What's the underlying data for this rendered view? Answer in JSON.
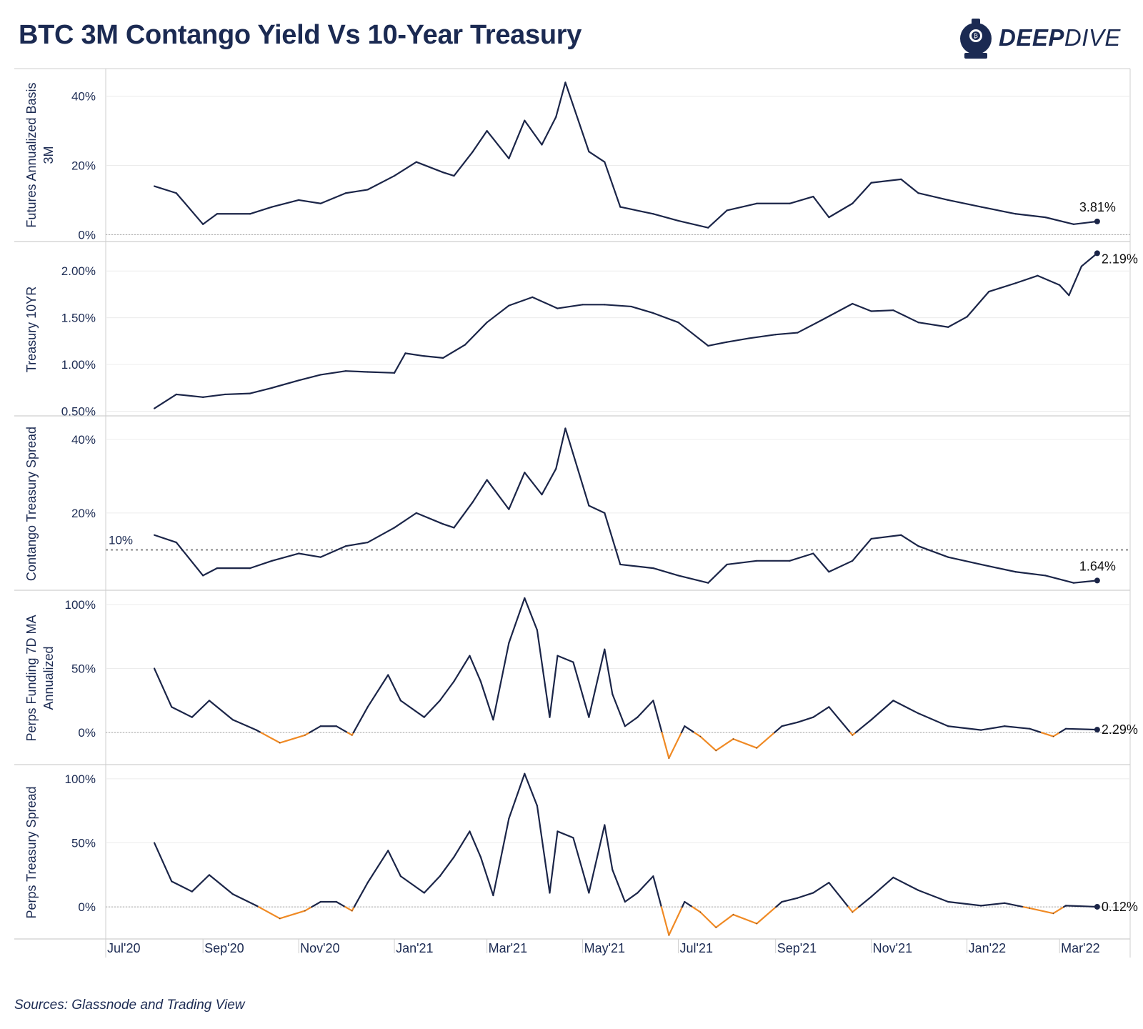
{
  "title": "BTC 3M Contango Yield Vs 10-Year Treasury",
  "brand": {
    "name_bold": "DEEP",
    "name_light": "DIVE",
    "icon": "diving-helmet-icon"
  },
  "source": "Sources: Glassnode and Trading View",
  "colors": {
    "line": "#1b2548",
    "negative": "#f08a24",
    "grid": "#ececec",
    "zero": "#a8a8a8",
    "axis_text": "#1b2a52"
  },
  "x_axis": {
    "ticks": [
      "Jul'20",
      "Sep'20",
      "Nov'20",
      "Jan'21",
      "Mar'21",
      "May'21",
      "Jul'21",
      "Sep'21",
      "Nov'21",
      "Jan'22",
      "Mar'22"
    ],
    "range": [
      "2020-07-01",
      "2022-04-15"
    ]
  },
  "chart_data": [
    {
      "type": "line",
      "ylabel": "Futures Annualized Basis 3M",
      "ylim": [
        -2,
        48
      ],
      "yticks": [
        0,
        20,
        40
      ],
      "ytick_labels": [
        "0%",
        "20%",
        "40%"
      ],
      "zero_line": true,
      "end_label": "3.81%",
      "x": [
        "2020-08-01",
        "2020-08-15",
        "2020-09-01",
        "2020-09-10",
        "2020-10-01",
        "2020-10-15",
        "2020-11-01",
        "2020-11-15",
        "2020-12-01",
        "2020-12-15",
        "2021-01-01",
        "2021-01-15",
        "2021-02-01",
        "2021-02-08",
        "2021-02-20",
        "2021-03-01",
        "2021-03-15",
        "2021-03-25",
        "2021-04-05",
        "2021-04-14",
        "2021-04-20",
        "2021-05-05",
        "2021-05-15",
        "2021-05-25",
        "2021-06-15",
        "2021-07-01",
        "2021-07-20",
        "2021-08-01",
        "2021-08-20",
        "2021-09-10",
        "2021-09-25",
        "2021-10-05",
        "2021-10-20",
        "2021-11-01",
        "2021-11-20",
        "2021-12-01",
        "2021-12-20",
        "2022-01-10",
        "2022-02-01",
        "2022-02-20",
        "2022-03-10",
        "2022-03-25"
      ],
      "y": [
        14,
        12,
        3,
        6,
        6,
        8,
        10,
        9,
        12,
        13,
        17,
        21,
        18,
        17,
        24,
        30,
        22,
        33,
        26,
        34,
        44,
        24,
        21,
        8,
        6,
        4,
        2,
        7,
        9,
        9,
        11,
        5,
        9,
        15,
        16,
        12,
        10,
        8,
        6,
        5,
        3,
        3.81
      ]
    },
    {
      "type": "line",
      "ylabel": "Treasury 10YR",
      "ylim": [
        0.45,
        2.3
      ],
      "yticks": [
        0.5,
        1.0,
        1.5,
        2.0
      ],
      "ytick_labels": [
        "0.50%",
        "1.00%",
        "1.50%",
        "2.00%"
      ],
      "zero_line": false,
      "end_label": "2.19%",
      "x": [
        "2020-08-01",
        "2020-08-15",
        "2020-09-01",
        "2020-09-15",
        "2020-10-01",
        "2020-10-15",
        "2020-11-01",
        "2020-11-15",
        "2020-12-01",
        "2020-12-15",
        "2021-01-01",
        "2021-01-08",
        "2021-01-20",
        "2021-02-01",
        "2021-02-15",
        "2021-03-01",
        "2021-03-15",
        "2021-03-30",
        "2021-04-15",
        "2021-05-01",
        "2021-05-15",
        "2021-06-01",
        "2021-06-15",
        "2021-07-01",
        "2021-07-20",
        "2021-08-01",
        "2021-08-15",
        "2021-09-01",
        "2021-09-15",
        "2021-10-01",
        "2021-10-20",
        "2021-11-01",
        "2021-11-15",
        "2021-12-01",
        "2021-12-20",
        "2022-01-01",
        "2022-01-15",
        "2022-02-01",
        "2022-02-15",
        "2022-03-01",
        "2022-03-07",
        "2022-03-15",
        "2022-03-25"
      ],
      "y": [
        0.53,
        0.68,
        0.65,
        0.68,
        0.69,
        0.75,
        0.83,
        0.89,
        0.93,
        0.92,
        0.91,
        1.12,
        1.09,
        1.07,
        1.21,
        1.45,
        1.63,
        1.72,
        1.6,
        1.64,
        1.64,
        1.62,
        1.55,
        1.45,
        1.2,
        1.24,
        1.28,
        1.32,
        1.34,
        1.48,
        1.65,
        1.57,
        1.58,
        1.45,
        1.4,
        1.51,
        1.78,
        1.87,
        1.95,
        1.85,
        1.74,
        2.05,
        2.19
      ]
    },
    {
      "type": "line",
      "ylabel": "Contango Treasury Spread",
      "ylim": [
        -1,
        46
      ],
      "yticks": [
        20,
        40
      ],
      "ytick_labels": [
        "20%",
        "40%"
      ],
      "zero_line": false,
      "reference_line": {
        "value": 10,
        "label": "10%"
      },
      "end_label": "1.64%",
      "x": [
        "2020-08-01",
        "2020-08-15",
        "2020-09-01",
        "2020-09-10",
        "2020-10-01",
        "2020-10-15",
        "2020-11-01",
        "2020-11-15",
        "2020-12-01",
        "2020-12-15",
        "2021-01-01",
        "2021-01-15",
        "2021-02-01",
        "2021-02-08",
        "2021-02-20",
        "2021-03-01",
        "2021-03-15",
        "2021-03-25",
        "2021-04-05",
        "2021-04-14",
        "2021-04-20",
        "2021-05-05",
        "2021-05-15",
        "2021-05-25",
        "2021-06-15",
        "2021-07-01",
        "2021-07-20",
        "2021-08-01",
        "2021-08-20",
        "2021-09-10",
        "2021-09-25",
        "2021-10-05",
        "2021-10-20",
        "2021-11-01",
        "2021-11-20",
        "2021-12-01",
        "2021-12-20",
        "2022-01-10",
        "2022-02-01",
        "2022-02-20",
        "2022-03-10",
        "2022-03-25"
      ],
      "y": [
        14,
        12,
        3,
        5,
        5,
        7,
        9,
        8,
        11,
        12,
        16,
        20,
        17,
        16,
        23,
        29,
        21,
        31,
        25,
        32,
        43,
        22,
        20,
        6,
        5,
        3,
        1,
        6,
        7,
        7,
        9,
        4,
        7,
        13,
        14,
        11,
        8,
        6,
        4,
        3,
        1,
        1.64
      ]
    },
    {
      "type": "line",
      "ylabel": "Perps Funding 7D MA Annualized",
      "ylim": [
        -25,
        110
      ],
      "yticks": [
        0,
        50,
        100
      ],
      "ytick_labels": [
        "0%",
        "50%",
        "100%"
      ],
      "zero_line": true,
      "negative_color": "#f08a24",
      "end_label": "2.29%",
      "x": [
        "2020-08-01",
        "2020-08-12",
        "2020-08-25",
        "2020-09-05",
        "2020-09-20",
        "2020-10-05",
        "2020-10-20",
        "2020-11-05",
        "2020-11-15",
        "2020-11-25",
        "2020-12-05",
        "2020-12-15",
        "2020-12-28",
        "2021-01-05",
        "2021-01-20",
        "2021-01-30",
        "2021-02-08",
        "2021-02-18",
        "2021-02-25",
        "2021-03-05",
        "2021-03-15",
        "2021-03-25",
        "2021-04-02",
        "2021-04-10",
        "2021-04-15",
        "2021-04-25",
        "2021-05-05",
        "2021-05-15",
        "2021-05-20",
        "2021-05-28",
        "2021-06-05",
        "2021-06-15",
        "2021-06-25",
        "2021-07-05",
        "2021-07-15",
        "2021-07-25",
        "2021-08-05",
        "2021-08-20",
        "2021-09-05",
        "2021-09-15",
        "2021-09-25",
        "2021-10-05",
        "2021-10-20",
        "2021-11-01",
        "2021-11-15",
        "2021-12-01",
        "2021-12-20",
        "2022-01-10",
        "2022-01-25",
        "2022-02-10",
        "2022-02-25",
        "2022-03-05",
        "2022-03-25"
      ],
      "y": [
        50,
        20,
        12,
        25,
        10,
        2,
        -8,
        -2,
        5,
        5,
        -2,
        20,
        45,
        25,
        12,
        25,
        40,
        60,
        40,
        10,
        70,
        105,
        80,
        12,
        60,
        55,
        12,
        65,
        30,
        5,
        12,
        25,
        -20,
        5,
        -3,
        -14,
        -5,
        -12,
        5,
        8,
        12,
        20,
        -2,
        10,
        25,
        15,
        5,
        2,
        5,
        3,
        -3,
        3,
        2.29
      ]
    },
    {
      "type": "line",
      "ylabel": "Perps Treasury Spread",
      "ylim": [
        -25,
        110
      ],
      "yticks": [
        0,
        50,
        100
      ],
      "ytick_labels": [
        "0%",
        "50%",
        "100%"
      ],
      "zero_line": true,
      "negative_color": "#f08a24",
      "end_label": "0.12%",
      "x": [
        "2020-08-01",
        "2020-08-12",
        "2020-08-25",
        "2020-09-05",
        "2020-09-20",
        "2020-10-05",
        "2020-10-20",
        "2020-11-05",
        "2020-11-15",
        "2020-11-25",
        "2020-12-05",
        "2020-12-15",
        "2020-12-28",
        "2021-01-05",
        "2021-01-20",
        "2021-01-30",
        "2021-02-08",
        "2021-02-18",
        "2021-02-25",
        "2021-03-05",
        "2021-03-15",
        "2021-03-25",
        "2021-04-02",
        "2021-04-10",
        "2021-04-15",
        "2021-04-25",
        "2021-05-05",
        "2021-05-15",
        "2021-05-20",
        "2021-05-28",
        "2021-06-05",
        "2021-06-15",
        "2021-06-25",
        "2021-07-05",
        "2021-07-15",
        "2021-07-25",
        "2021-08-05",
        "2021-08-20",
        "2021-09-05",
        "2021-09-15",
        "2021-09-25",
        "2021-10-05",
        "2021-10-20",
        "2021-11-01",
        "2021-11-15",
        "2021-12-01",
        "2021-12-20",
        "2022-01-10",
        "2022-01-25",
        "2022-02-10",
        "2022-02-25",
        "2022-03-05",
        "2022-03-25"
      ],
      "y": [
        50,
        20,
        12,
        25,
        10,
        1,
        -9,
        -3,
        4,
        4,
        -3,
        19,
        44,
        24,
        11,
        24,
        39,
        59,
        39,
        9,
        69,
        104,
        79,
        11,
        59,
        54,
        11,
        64,
        29,
        4,
        11,
        24,
        -22,
        4,
        -4,
        -16,
        -6,
        -13,
        4,
        7,
        11,
        19,
        -4,
        8,
        23,
        13,
        4,
        1,
        3,
        -1,
        -5,
        1,
        0.12
      ]
    }
  ]
}
